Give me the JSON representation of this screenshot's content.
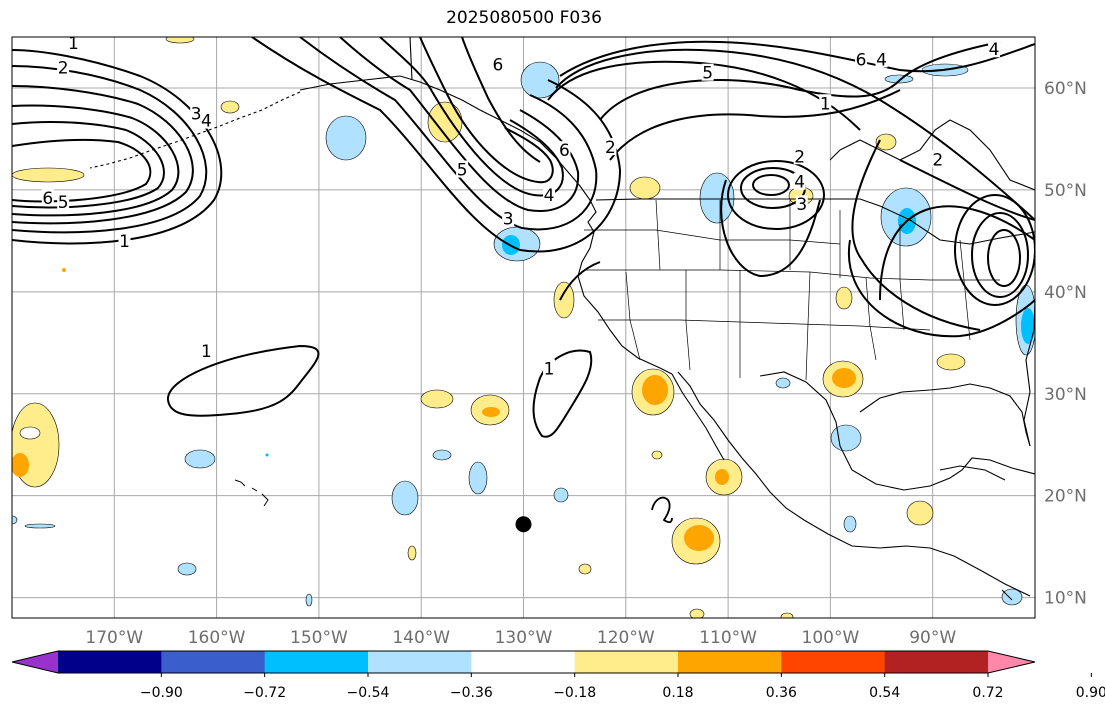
{
  "title": "2025080500 F036",
  "map": {
    "lon_range": [
      -180,
      -80
    ],
    "lat_range": [
      8,
      65
    ],
    "lon_ticks": [
      {
        "lon": -170,
        "label": "170°W"
      },
      {
        "lon": -160,
        "label": "160°W"
      },
      {
        "lon": -150,
        "label": "150°W"
      },
      {
        "lon": -140,
        "label": "140°W"
      },
      {
        "lon": -130,
        "label": "130°W"
      },
      {
        "lon": -120,
        "label": "120°W"
      },
      {
        "lon": -110,
        "label": "110°W"
      },
      {
        "lon": -100,
        "label": "100°W"
      },
      {
        "lon": -90,
        "label": "90°W"
      }
    ],
    "lat_ticks": [
      {
        "lat": 60,
        "label": "60°N"
      },
      {
        "lat": 50,
        "label": "50°N"
      },
      {
        "lat": 40,
        "label": "40°N"
      },
      {
        "lat": 30,
        "label": "30°N"
      },
      {
        "lat": 20,
        "label": "20°N"
      },
      {
        "lat": 10,
        "label": "10°N"
      }
    ],
    "marker": {
      "lon": -130.0,
      "lat": 17.2
    },
    "contour_labels": [
      {
        "text": "1",
        "lon": -174.0,
        "lat": 64.4
      },
      {
        "text": "2",
        "lon": -175.0,
        "lat": 62.0
      },
      {
        "text": "3",
        "lon": -162.0,
        "lat": 57.5
      },
      {
        "text": "4",
        "lon": -161.0,
        "lat": 56.8
      },
      {
        "text": "6",
        "lon": -176.5,
        "lat": 49.2
      },
      {
        "text": "5",
        "lon": -175.0,
        "lat": 48.8
      },
      {
        "text": "1",
        "lon": -169.0,
        "lat": 45.0
      },
      {
        "text": "6",
        "lon": -132.5,
        "lat": 62.3
      },
      {
        "text": "5",
        "lon": -136.0,
        "lat": 52.0
      },
      {
        "text": "6",
        "lon": -126.0,
        "lat": 53.9
      },
      {
        "text": "4",
        "lon": -127.5,
        "lat": 49.5
      },
      {
        "text": "3",
        "lon": -131.5,
        "lat": 47.2
      },
      {
        "text": "2",
        "lon": -121.5,
        "lat": 54.2
      },
      {
        "text": "5",
        "lon": -112.0,
        "lat": 61.5
      },
      {
        "text": "1",
        "lon": -100.5,
        "lat": 58.5
      },
      {
        "text": "6",
        "lon": -97.0,
        "lat": 62.8
      },
      {
        "text": "4",
        "lon": -95.0,
        "lat": 62.8
      },
      {
        "text": "4",
        "lon": -84.0,
        "lat": 63.8
      },
      {
        "text": "2",
        "lon": -103.0,
        "lat": 53.3
      },
      {
        "text": "4",
        "lon": -103.0,
        "lat": 50.8
      },
      {
        "text": "3",
        "lon": -102.8,
        "lat": 48.6
      },
      {
        "text": "2",
        "lon": -89.5,
        "lat": 53.0
      },
      {
        "text": "1",
        "lon": -161.0,
        "lat": 34.2
      },
      {
        "text": "1",
        "lon": -127.5,
        "lat": 32.5
      }
    ]
  },
  "colorbar": {
    "colors": [
      "#9932cc",
      "#00008b",
      "#3a5fcd",
      "#00bfff",
      "#b0e2ff",
      "#ffffff",
      "#ffec8b",
      "#ffa500",
      "#ff4500",
      "#b22222",
      "#ff88aa"
    ],
    "tick_labels": [
      "−0.90",
      "−0.72",
      "−0.54",
      "−0.36",
      "−0.18",
      "0.18",
      "0.36",
      "0.54",
      "0.72",
      "0.90"
    ]
  }
}
